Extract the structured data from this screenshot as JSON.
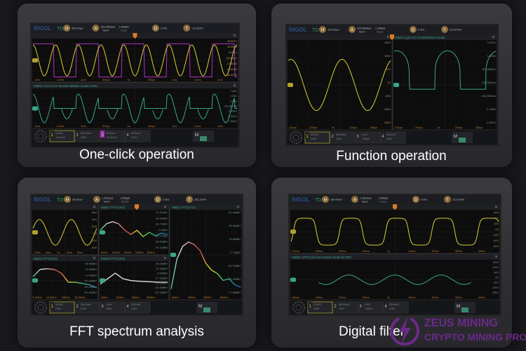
{
  "captions": [
    "One-click operation",
    "Function operation",
    "FFT spectrum analysis",
    "Digital filter"
  ],
  "watermark": {
    "line1": "ZEUS MINING",
    "line2": "CRYPTO MINING PRO",
    "brand_color": "#6a2a8a"
  },
  "colors": {
    "ch1": "#d8d030",
    "ch3": "#b030c0",
    "math": "#3aa58a",
    "trigger": "#e07a20"
  },
  "screens": [
    {
      "header": {
        "brand": "RIGOL",
        "mode": "TD",
        "h_label": "H",
        "h_value": "500.00μs/",
        "a_label": "A",
        "a_rate": "156.25MSa/s",
        "a_depth": "1.00Mpts",
        "a_mode": "Norm",
        "a_sub": "Single",
        "d_label": "D",
        "d_value": "0.00s",
        "t_label": "T",
        "t_value": "-32.61mV"
      },
      "panes": [
        {
          "title": "",
          "ylabels": [
            "25.957V",
            "15.957V",
            "5.957V",
            "-32.61mV",
            "-12.603V",
            "-23.603V",
            "-33.603V"
          ],
          "xlabels": [
            "-2ms",
            "-1.5ms",
            "-1ms",
            "-500μs",
            "0s",
            "500μs",
            "1ms",
            "1.5ms",
            "2ms"
          ]
        },
        {
          "title": "Math2   CH1*CH3   Sa:156.4MSa/s   Scale:2.50U",
          "ylabels": [
            "7.45U",
            "4.95U",
            "2.45U",
            "-52.602mU",
            "-2.554U",
            "-5.054U",
            "-7.554U"
          ],
          "xlabels": [
            "-2ms",
            "-1.5ms",
            "-1ms",
            "-500μs",
            "0s",
            "500μs",
            "1ms",
            "1.5ms",
            "2ms"
          ]
        }
      ],
      "channels": [
        {
          "num": "1",
          "scale": "10.00V/",
          "offset": "-32.61mV"
        },
        {
          "num": "2",
          "scale": "500.00mV/",
          "offset": "0.00V"
        },
        {
          "num": "3",
          "scale": "50.00mV/",
          "offset": "-101.87mV"
        },
        {
          "num": "4",
          "scale": "50.00mV/",
          "offset": "0.00V"
        }
      ],
      "math_label": "M"
    },
    {
      "header": {
        "brand": "RIGOL",
        "mode": "TD",
        "h_label": "H",
        "h_value": "100.00μs/",
        "a_label": "A",
        "a_rate": "625.00MSa/s",
        "a_depth": "1.00Mpts",
        "a_mode": "Norm",
        "a_sub": "Single",
        "d_label": "D",
        "d_value": "0.00s",
        "t_label": "T",
        "t_value": "212.87mV"
      },
      "panes": [
        {
          "title": "",
          "ylabels": [
            "150V",
            "100V",
            "50V",
            "0V",
            "-50V",
            "-100V",
            "-150V"
          ],
          "xlabels": [
            "-400μs",
            "-200μs",
            "0s",
            "200μs",
            "400μs"
          ]
        },
        {
          "title": "Math2   Lg(CH1)   Sa:625MSa/s   Scale",
          "ylabels": [
            "2.357U",
            "1.655U",
            "942.265mU",
            "229.932mU",
            "-482.361mU",
            "-1.195U",
            "-1.907U"
          ],
          "xlabels": [
            "-400μs",
            "-200μs",
            "0s",
            "200μs",
            "400μs"
          ]
        }
      ],
      "channels": [
        {
          "num": "1",
          "scale": "50.00V/",
          "offset": "0.00V"
        },
        {
          "num": "2",
          "scale": "500.00mV/",
          "offset": "0.00V"
        },
        {
          "num": "3",
          "scale": "1.00V/",
          "offset": "-7.80mV"
        },
        {
          "num": "4",
          "scale": "50.00mV/",
          "offset": "0.00V"
        }
      ],
      "math_label": "M"
    },
    {
      "header": {
        "brand": "RIGOL",
        "mode": "TD",
        "h_label": "H",
        "h_value": "20.00ns/",
        "a_label": "A",
        "a_rate": "1.25GSa/s",
        "a_depth": "1.00Mpts",
        "a_mode": "Norm",
        "a_sub": "800pts",
        "d_label": "D",
        "d_value": "0.00s",
        "t_label": "T",
        "t_value": "252.19mV"
      },
      "panes": [
        {
          "title": "",
          "ylabels": [
            "60V",
            "40V",
            "20V",
            "0V",
            "-20V",
            "-40V"
          ],
          "xlabels": [
            "-80ns",
            "-40ns",
            "0s",
            "40ns",
            "80ns"
          ]
        },
        {
          "title": "Math2   FFT(CH1)",
          "ylabels": [
            "74.31dBV",
            "49.54dBV",
            "24.77dBV",
            "0.0dBV",
            "-24.77dBV",
            "-49.54dBV",
            "-74.31dBV"
          ],
          "xlabels": [
            "5MHz",
            "15MHz",
            "25MHz",
            "35MHz",
            "45MHz"
          ]
        },
        {
          "title": "Math1   FFT(CH1)",
          "ylabels": [
            "62.44dBV",
            "39.05dBV",
            "15.66dBV",
            "-7.73dBV",
            "-31.12dBV",
            "-54.42dBV",
            "-77.83dBV"
          ],
          "xlabels": [
            "5MHz",
            "15MHz",
            "25MHz",
            "35MHz"
          ]
        },
        {
          "title": "Math4   FFT(CH1)",
          "ylabels": [
            "39.59dBV",
            "19.59dBV",
            "-0.40dBV",
            "-20.40dBV",
            "-40.40dBV",
            "-60.40dBV"
          ],
          "xlabels": [
            "5.2MHz",
            "15.6MHz",
            "26MHz",
            "36.4MHz"
          ]
        },
        {
          "title": "Math3   FFT(CH1)",
          "ylabels": [
            "53.05dBV",
            "29.54dBV",
            "6.02dBV",
            "-17.51dBV",
            "-41.03dBV",
            "-64.55dBV",
            "-87.05dBV"
          ],
          "xlabels": [
            "5MHz",
            "15MHz",
            "25MHz",
            "35MHz"
          ]
        }
      ],
      "channels": [
        {
          "num": "1",
          "scale": "20.00V/",
          "offset": "0.00V"
        },
        {
          "num": "2",
          "scale": "500.00mV/",
          "offset": "0.00V"
        },
        {
          "num": "3",
          "scale": "1.00V/",
          "offset": "0.00V"
        },
        {
          "num": "4",
          "scale": "50.00mV/",
          "offset": "0.00V"
        }
      ],
      "math_label": "M"
    },
    {
      "header": {
        "brand": "RIGOL",
        "mode": "TD",
        "h_label": "H",
        "h_value": "100.00ns/",
        "a_label": "A",
        "a_rate": "2.25GSa/s",
        "a_depth": "1.00Mpts",
        "a_mode": "Norm",
        "a_sub": "400pts",
        "d_label": "D",
        "d_value": "0.00s",
        "t_label": "T",
        "t_value": "212.87mV"
      },
      "panes": [
        {
          "title": "",
          "ylabels": [
            "60V",
            "40V",
            "20V",
            "0V",
            "-20V",
            "-40V",
            "-60V"
          ],
          "xlabels": [
            "-400ns",
            "-300ns",
            "-200ns",
            "-100ns",
            "0s",
            "100ns",
            "200ns",
            "300ns",
            "400ns"
          ]
        },
        {
          "title": "Math2   LPF(CH1)   Sa:2GSa/s   Scale:50.00V",
          "ylabels": [
            "150V",
            "100V",
            "50V",
            "0V",
            "-50V",
            "-100V",
            "-150V"
          ],
          "xlabels": [
            "-400ns",
            "-300ns",
            "-200ns",
            "-100ns",
            "0s",
            "100ns",
            "200ns",
            "300ns",
            "400ns"
          ]
        }
      ],
      "channels": [
        {
          "num": "1",
          "scale": "20.00V/",
          "offset": "0.00V"
        },
        {
          "num": "2",
          "scale": "500.00mV/",
          "offset": "0.00V"
        },
        {
          "num": "3",
          "scale": "1.00V/",
          "offset": "-7.80mV"
        },
        {
          "num": "4",
          "scale": "50.00mV/",
          "offset": "0.00V"
        }
      ],
      "math_label": "M"
    }
  ]
}
